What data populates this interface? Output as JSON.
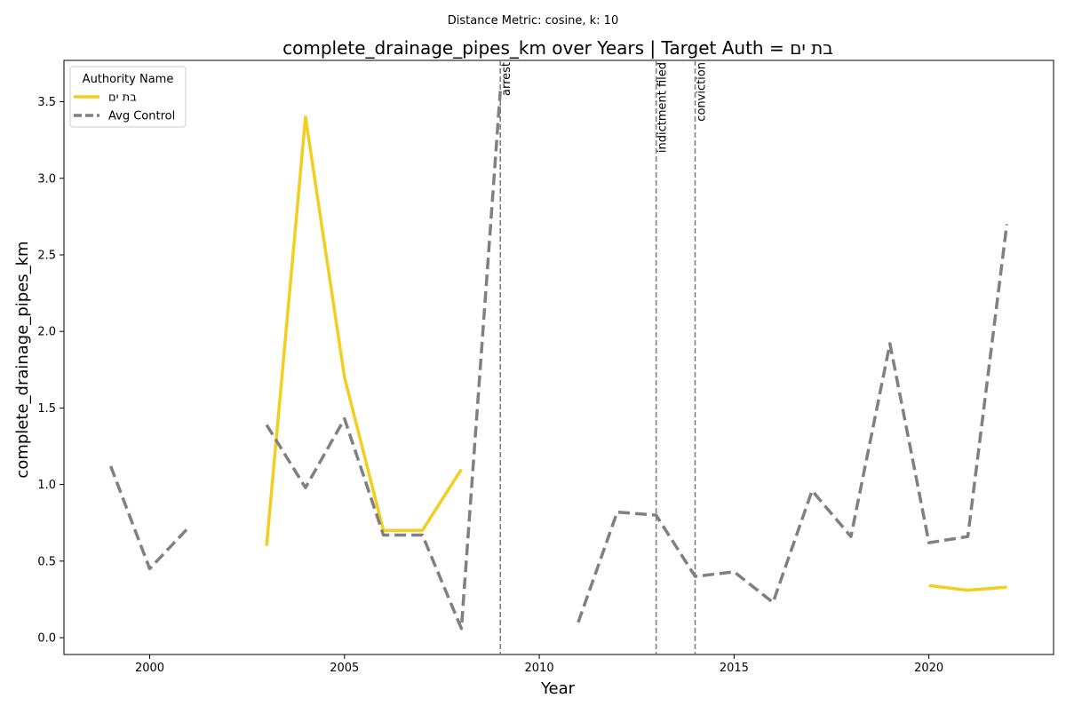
{
  "chart_data": {
    "type": "line",
    "suptitle": "Distance Metric: cosine, k: 10",
    "title": "complete_drainage_pipes_km over Years | Target Auth = בת ים",
    "xlabel": "Year",
    "ylabel": "complete_drainage_pipes_km",
    "xlim": [
      1997.8,
      2023.2
    ],
    "ylim": [
      -0.11,
      3.77
    ],
    "x_ticks": [
      2000,
      2005,
      2010,
      2015,
      2020
    ],
    "y_ticks": [
      0.0,
      0.5,
      1.0,
      1.5,
      2.0,
      2.5,
      3.0,
      3.5
    ],
    "grid": false,
    "legend": {
      "title": "Authority Name",
      "placement": "top-left",
      "entries": [
        "בת ים",
        "Avg Control"
      ]
    },
    "series": [
      {
        "name": "בת ים",
        "color": "#f2cf1f",
        "style": "solid",
        "x": [
          1999,
          2000,
          2001,
          2002,
          2003,
          2004,
          2005,
          2006,
          2007,
          2008,
          2009,
          2010,
          2011,
          2012,
          2013,
          2014,
          2015,
          2016,
          2017,
          2018,
          2019,
          2020,
          2021,
          2022
        ],
        "values": [
          null,
          null,
          null,
          null,
          0.6,
          3.4,
          1.7,
          0.7,
          0.7,
          1.1,
          null,
          null,
          null,
          null,
          null,
          null,
          null,
          null,
          null,
          null,
          null,
          0.34,
          0.31,
          0.33
        ]
      },
      {
        "name": "Avg Control",
        "color": "#808080",
        "style": "dashed",
        "x": [
          1999,
          2000,
          2001,
          2002,
          2003,
          2004,
          2005,
          2006,
          2007,
          2008,
          2009,
          2010,
          2011,
          2012,
          2013,
          2014,
          2015,
          2016,
          2017,
          2018,
          2019,
          2020,
          2021,
          2022
        ],
        "values": [
          1.12,
          0.45,
          0.72,
          null,
          1.39,
          0.98,
          1.43,
          0.67,
          0.67,
          0.06,
          3.57,
          null,
          0.1,
          0.82,
          0.8,
          0.4,
          0.43,
          0.23,
          0.96,
          0.66,
          1.92,
          0.62,
          0.66,
          2.7
        ]
      }
    ],
    "events": [
      {
        "x": 2009,
        "label": "arrest"
      },
      {
        "x": 2013,
        "label": "indictment filed"
      },
      {
        "x": 2014,
        "label": "conviction"
      }
    ]
  }
}
